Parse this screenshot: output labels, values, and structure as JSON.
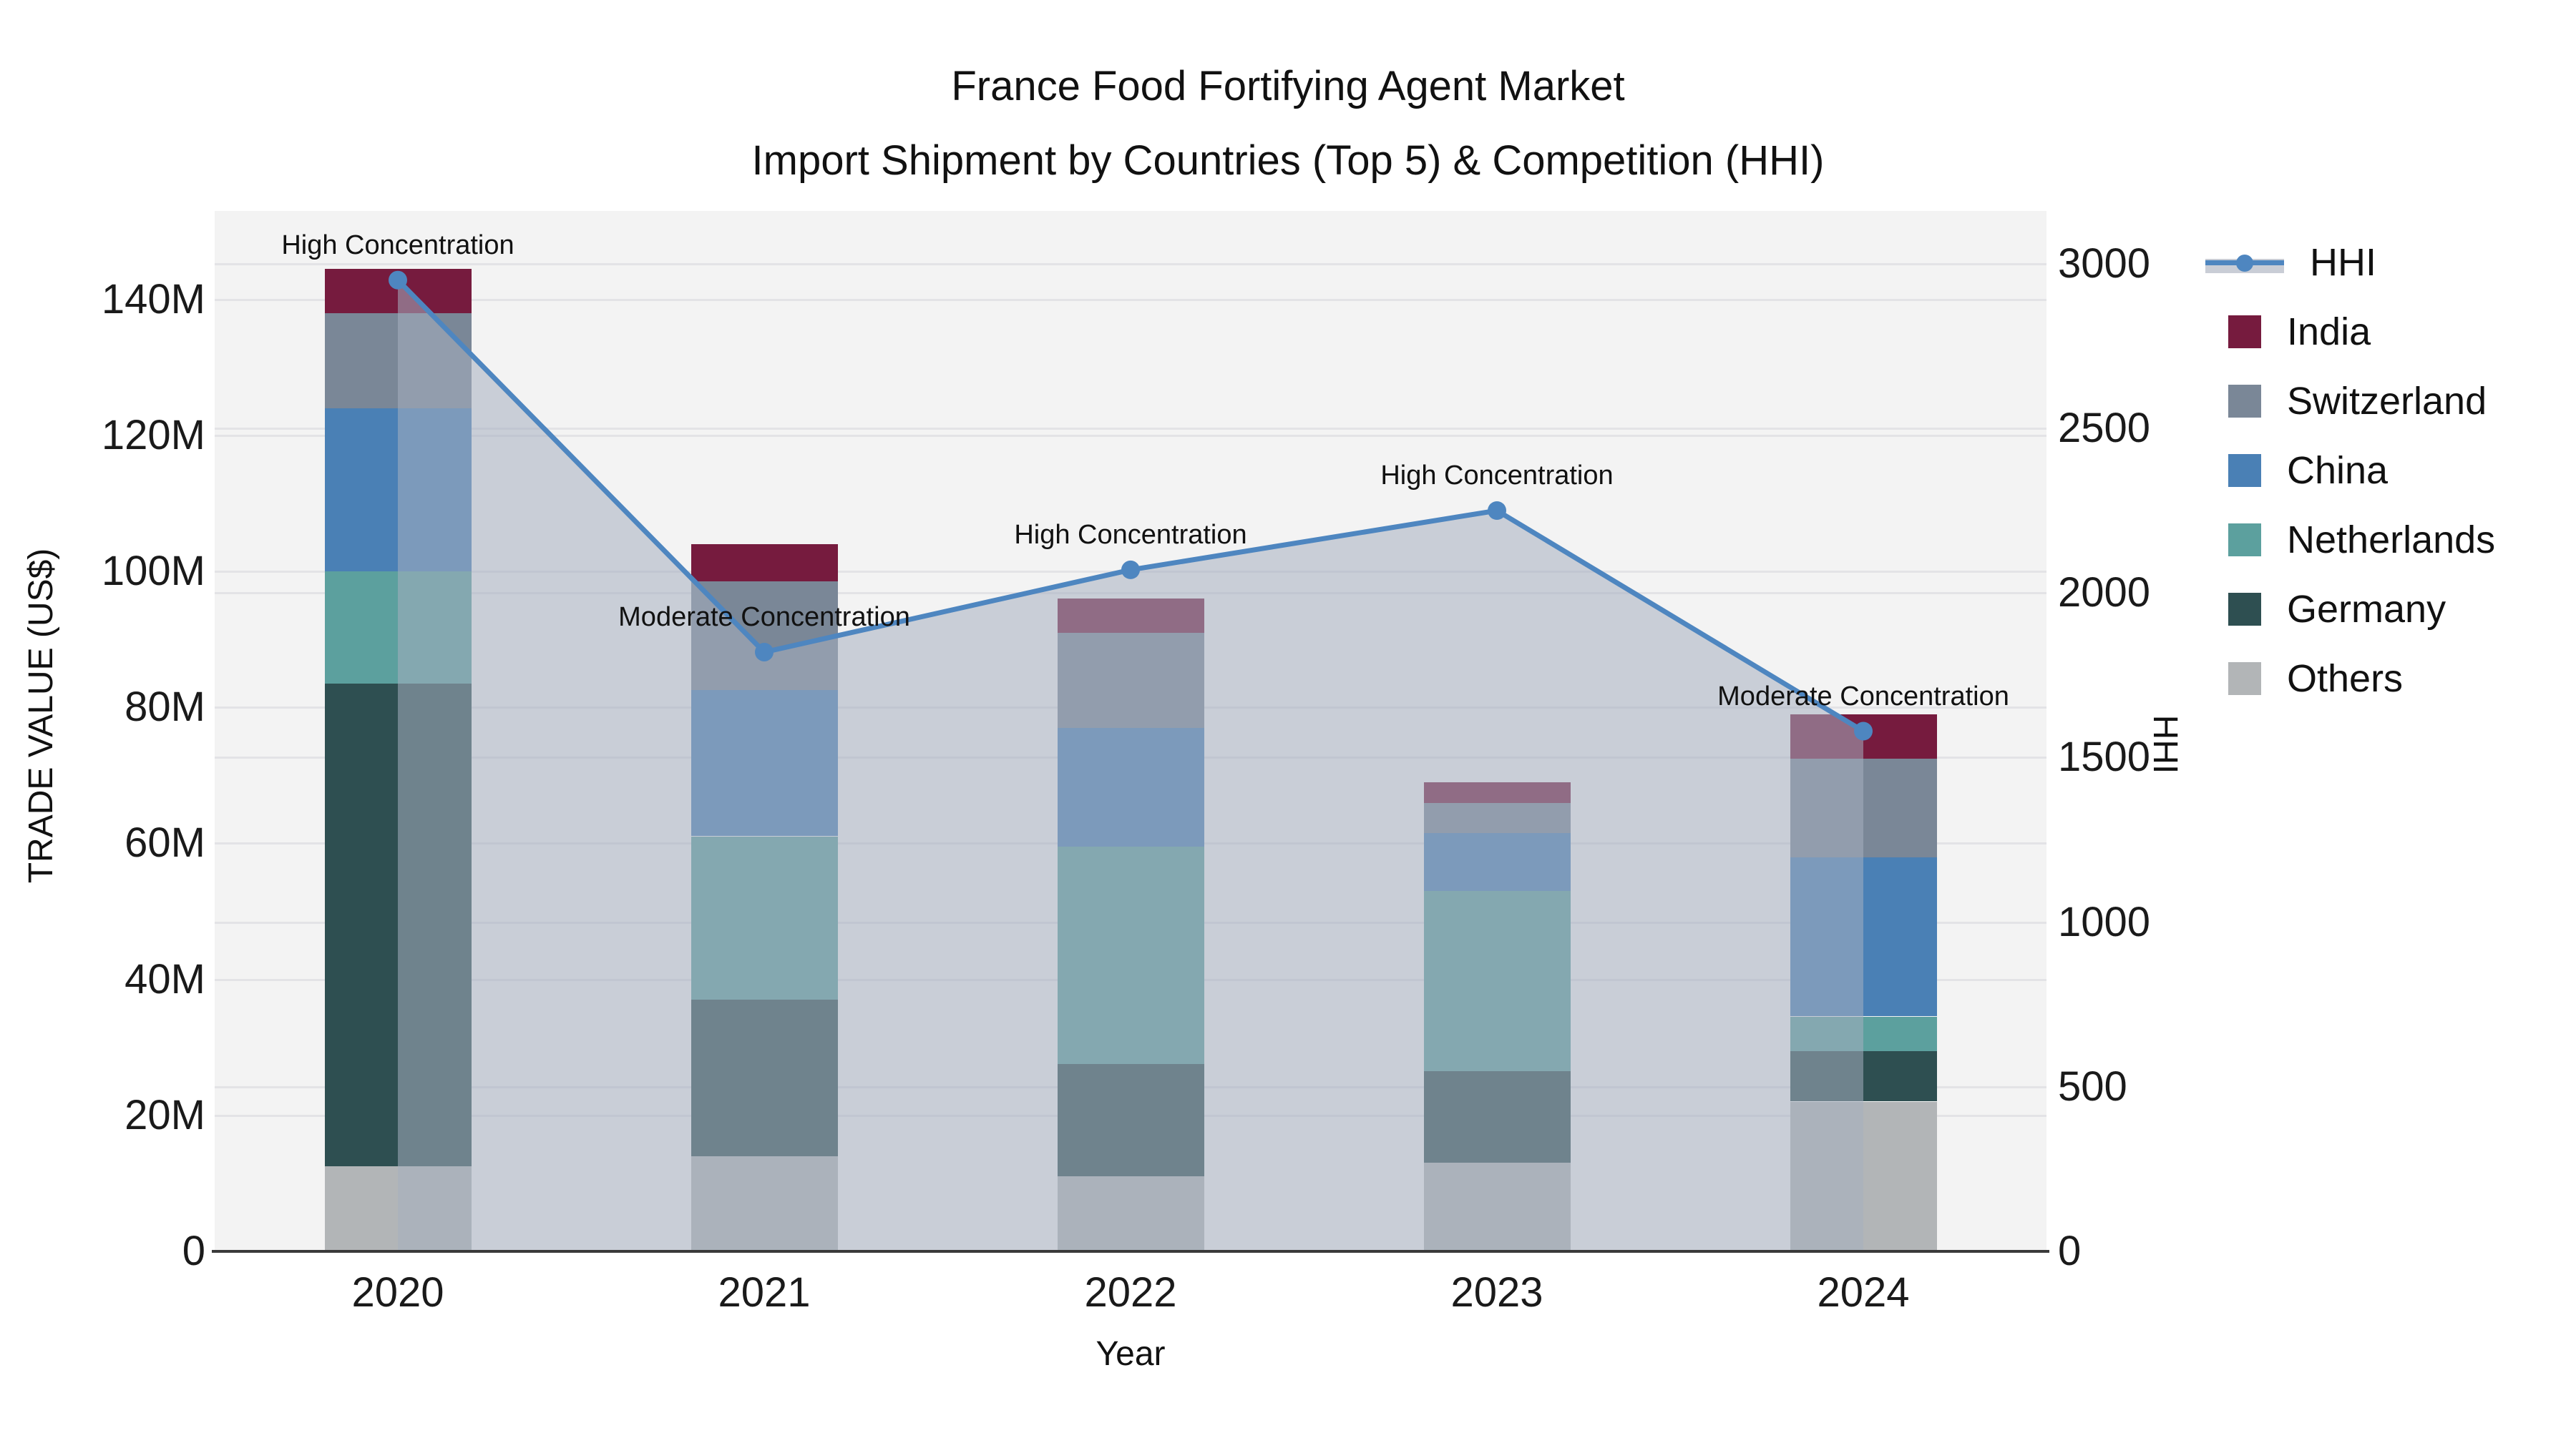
{
  "title": {
    "line1": "France Food Fortifying Agent Market",
    "line2": "Import Shipment by Countries (Top 5) & Competition (HHI)"
  },
  "chart_data": {
    "type": "bar",
    "subtype": "stacked-bar-with-line-overlay",
    "categories": [
      "2020",
      "2021",
      "2022",
      "2023",
      "2024"
    ],
    "series": [
      {
        "name": "India",
        "values_million_usd": [
          6.5,
          5.5,
          5,
          3,
          6.5
        ]
      },
      {
        "name": "Switzerland",
        "values_million_usd": [
          14,
          16,
          14,
          4.5,
          14.5
        ]
      },
      {
        "name": "China",
        "values_million_usd": [
          24,
          21.5,
          17.5,
          8.5,
          23.5
        ]
      },
      {
        "name": "Netherlands",
        "values_million_usd": [
          16.5,
          24,
          32,
          26.5,
          5
        ]
      },
      {
        "name": "Germany",
        "values_million_usd": [
          71,
          23,
          16.5,
          13.5,
          7.5
        ]
      },
      {
        "name": "Others",
        "values_million_usd": [
          12.5,
          14,
          11,
          13,
          22
        ]
      }
    ],
    "stack_order_bottom_to_top": [
      "Others",
      "Germany",
      "Netherlands",
      "China",
      "Switzerland",
      "India"
    ],
    "line_series": {
      "name": "HHI",
      "values": [
        2950,
        1820,
        2070,
        2250,
        1580
      ],
      "axis": "right"
    },
    "annotations": [
      {
        "category": "2020",
        "text": "High Concentration"
      },
      {
        "category": "2021",
        "text": "Moderate Concentration"
      },
      {
        "category": "2022",
        "text": "High Concentration"
      },
      {
        "category": "2023",
        "text": "High Concentration"
      },
      {
        "category": "2024",
        "text": "Moderate Concentration"
      }
    ],
    "xlabel": "Year",
    "ylabel_left": "TRADE VALUE (US$)",
    "ylabel_right": "HHI",
    "yticks_left": [
      {
        "value_million": 0,
        "label": "0"
      },
      {
        "value_million": 20,
        "label": "20M"
      },
      {
        "value_million": 40,
        "label": "40M"
      },
      {
        "value_million": 60,
        "label": "60M"
      },
      {
        "value_million": 80,
        "label": "80M"
      },
      {
        "value_million": 100,
        "label": "100M"
      },
      {
        "value_million": 120,
        "label": "120M"
      },
      {
        "value_million": 140,
        "label": "140M"
      }
    ],
    "yticks_right": [
      {
        "value": 0,
        "label": "0"
      },
      {
        "value": 500,
        "label": "500"
      },
      {
        "value": 1000,
        "label": "1000"
      },
      {
        "value": 1500,
        "label": "1500"
      },
      {
        "value": 2000,
        "label": "2000"
      },
      {
        "value": 2500,
        "label": "2500"
      },
      {
        "value": 3000,
        "label": "3000"
      }
    ],
    "ylim_left_million": [
      0,
      153
    ],
    "ylim_right": [
      0,
      3160
    ],
    "grid": true,
    "legend_position": "right",
    "legend_order": [
      "HHI",
      "India",
      "Switzerland",
      "China",
      "Netherlands",
      "Germany",
      "Others"
    ]
  },
  "colors": {
    "series": {
      "India": "#761b3e",
      "Switzerland": "#7a8797",
      "China": "#4a80b5",
      "Netherlands": "#5ca09e",
      "Germany": "#2e4f51",
      "Others": "#b2b5b7"
    },
    "hhi_line": "#4e86c0",
    "hhi_area": "rgba(165,174,192,0.55)",
    "hhi_area_solid": "#c9cdd6",
    "plot_background": "#f3f3f3",
    "gridline": "#e3e3e6",
    "axis_line": "#3a3a3a",
    "text": "#1a1a1a"
  }
}
